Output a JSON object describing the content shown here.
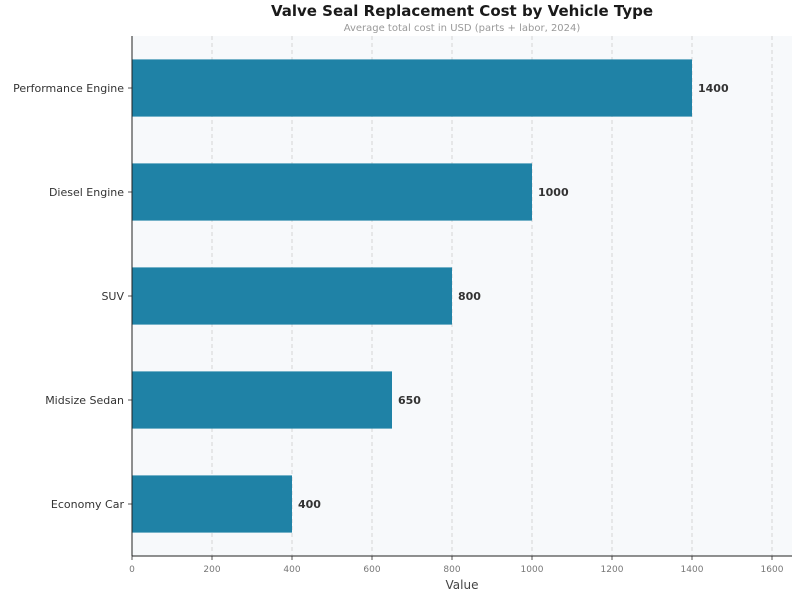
{
  "chart_data": {
    "type": "bar",
    "orientation": "horizontal",
    "title": "Valve Seal Replacement Cost by Vehicle Type",
    "subtitle": "Average total cost in USD (parts + labor, 2024)",
    "xlabel": "Value",
    "ylabel": "",
    "categories": [
      "Performance Engine",
      "Diesel Engine",
      "SUV",
      "Midsize Sedan",
      "Economy Car"
    ],
    "values": [
      1400,
      1000,
      800,
      650,
      400
    ],
    "xlim": [
      0,
      1650
    ],
    "xticks": [
      0,
      200,
      400,
      600,
      800,
      1000,
      1200,
      1400,
      1600
    ],
    "grid": "vertical dashed",
    "bar_color": "#1f82a6",
    "plot_bg": "#f7f9fb"
  }
}
